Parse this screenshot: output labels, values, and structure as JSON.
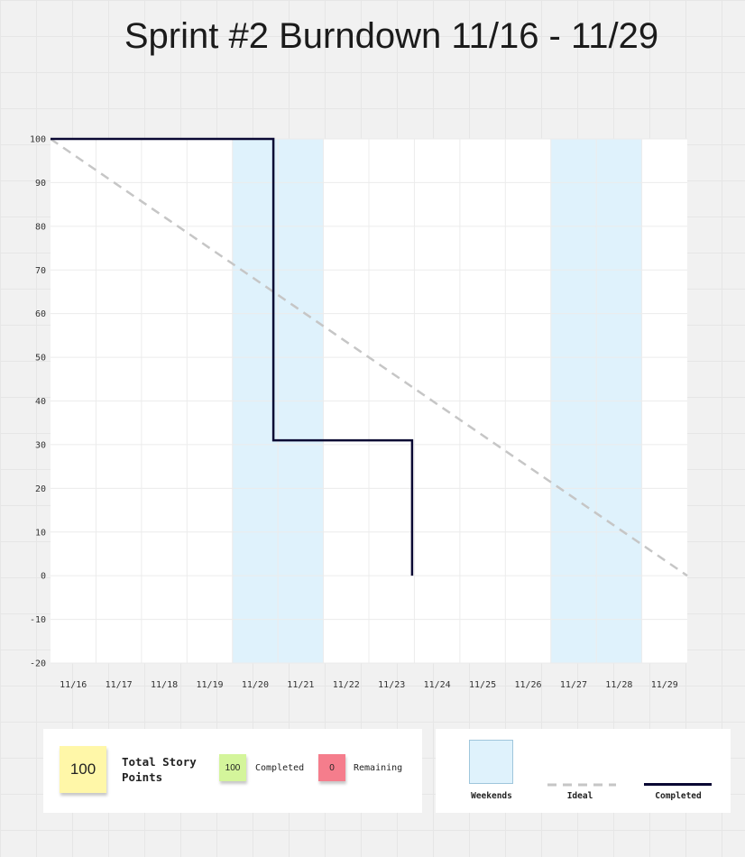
{
  "chart_data": {
    "type": "line",
    "title": "Sprint #2 Burndown 11/16 - 11/29",
    "categories": [
      "11/16",
      "11/17",
      "11/18",
      "11/19",
      "11/20",
      "11/21",
      "11/22",
      "11/23",
      "11/24",
      "11/25",
      "11/26",
      "11/27",
      "11/28",
      "11/29"
    ],
    "y_ticks": [
      100,
      90,
      80,
      70,
      60,
      50,
      40,
      30,
      20,
      10,
      0,
      -10,
      -20
    ],
    "ylim": [
      -20,
      100
    ],
    "x_range": [
      0,
      14
    ],
    "weekends": [
      [
        4,
        6
      ],
      [
        11,
        13
      ]
    ],
    "series": [
      {
        "name": "Ideal",
        "style": "dashed",
        "color": "#c6c6c6",
        "points": [
          [
            0,
            100
          ],
          [
            14,
            0
          ]
        ]
      },
      {
        "name": "Completed",
        "style": "solid",
        "color": "#0a0833",
        "points": [
          [
            0,
            100
          ],
          [
            4.9,
            100
          ],
          [
            4.9,
            31
          ],
          [
            7.95,
            31
          ],
          [
            7.95,
            0
          ]
        ]
      }
    ]
  },
  "summary": {
    "total_value": "100",
    "total_label": "Total Story Points",
    "completed_value": "100",
    "completed_label": "Completed",
    "remaining_value": "0",
    "remaining_label": "Remaining"
  },
  "legend": {
    "weekends_label": "Weekends",
    "ideal_label": "Ideal",
    "completed_label": "Completed"
  }
}
